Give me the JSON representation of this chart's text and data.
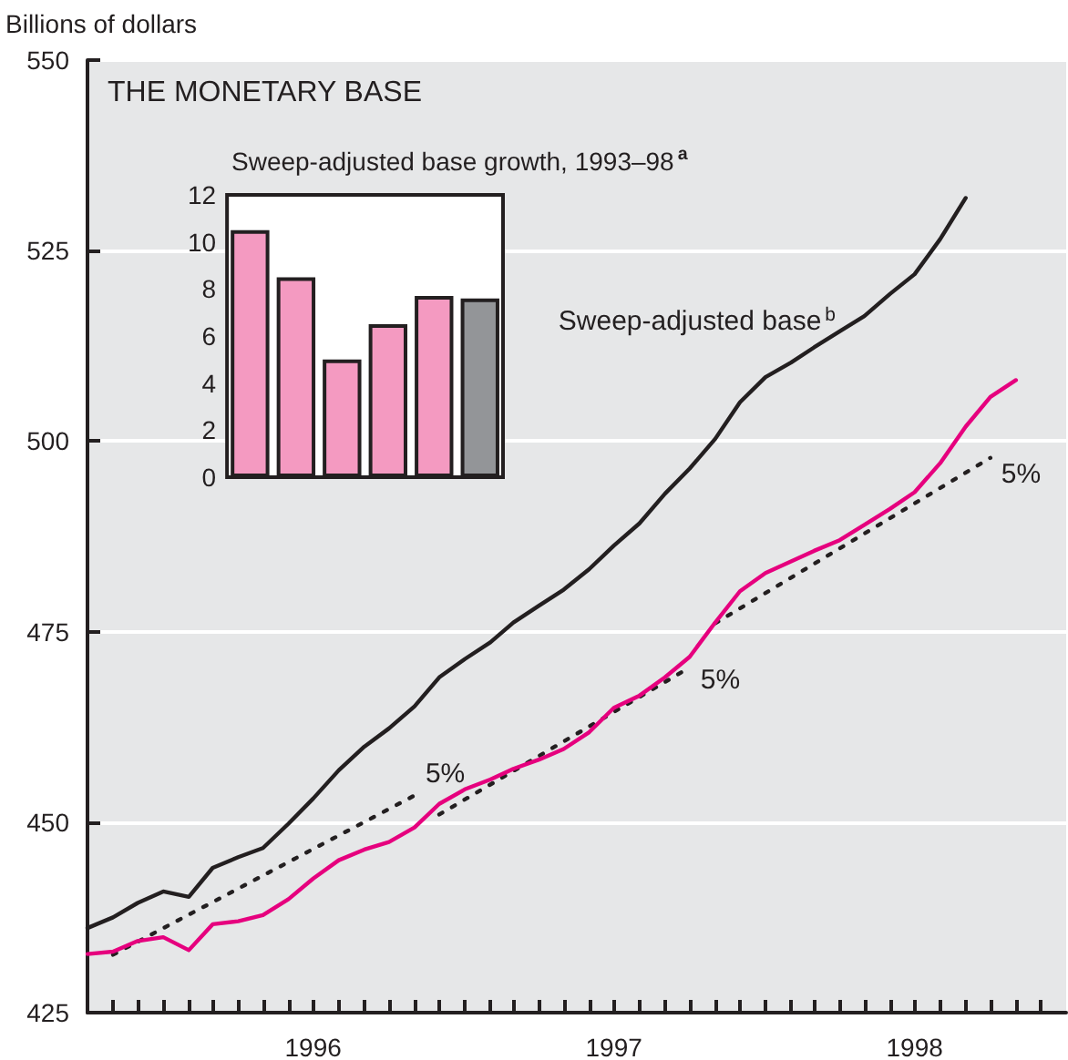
{
  "chart_data": [
    {
      "type": "line",
      "title": "THE MONETARY BASE",
      "ylabel": "Billions of dollars",
      "series": [
        {
          "color": "#e6007e",
          "x": [
            "1995-10",
            "1995-11",
            "1995-12",
            "1996-01",
            "1996-02",
            "1996-03",
            "1996-04",
            "1996-05",
            "1996-06",
            "1996-07",
            "1996-08",
            "1996-09",
            "1996-10",
            "1996-11",
            "1996-12",
            "1997-01",
            "1997-02",
            "1997-03",
            "1997-04",
            "1997-05",
            "1997-06",
            "1997-07",
            "1997-08",
            "1997-09",
            "1997-10",
            "1997-11",
            "1997-12",
            "1998-01",
            "1998-02",
            "1998-03",
            "1998-04",
            "1998-05",
            "1998-06",
            "1998-07",
            "1998-08",
            "1998-09",
            "1998-10",
            "1998-11"
          ],
          "values": [
            432.7,
            433.0,
            434.4,
            434.9,
            433.2,
            436.6,
            437.0,
            437.8,
            439.9,
            442.6,
            445.0,
            446.4,
            447.4,
            449.3,
            452.4,
            454.3,
            455.6,
            457.0,
            458.2,
            459.6,
            461.8,
            465.0,
            466.6,
            469.0,
            471.7,
            476.2,
            480.3,
            482.7,
            484.2,
            485.6,
            487.0,
            489.0,
            491.1,
            493.3,
            497.1,
            501.9,
            505.8,
            508.0
          ]
        },
        {
          "name": "Sweep-adjusted base$^{b}$",
          "color": "#231f20",
          "x": [
            "1995-10",
            "1995-11",
            "1995-12",
            "1996-01",
            "1996-02",
            "1996-03",
            "1996-04",
            "1996-05",
            "1996-06",
            "1996-07",
            "1996-08",
            "1996-09",
            "1996-10",
            "1996-11",
            "1996-12",
            "1997-01",
            "1997-02",
            "1997-03",
            "1997-04",
            "1997-05",
            "1997-06",
            "1997-07",
            "1997-08",
            "1997-09",
            "1997-10",
            "1997-11",
            "1997-12",
            "1998-01",
            "1998-02",
            "1998-03",
            "1998-04",
            "1998-05",
            "1998-06",
            "1998-07",
            "1998-08",
            "1998-09"
          ],
          "values": [
            436.1,
            437.5,
            439.4,
            440.9,
            440.2,
            444.0,
            445.4,
            446.6,
            449.8,
            453.1,
            456.8,
            459.9,
            462.3,
            465.2,
            469.0,
            471.4,
            473.6,
            476.2,
            478.4,
            480.5,
            483.2,
            486.3,
            489.2,
            493.1,
            496.4,
            500.3,
            505.1,
            508.4,
            510.3,
            512.3,
            514.4,
            516.4,
            519.3,
            521.9,
            526.5,
            531.9
          ]
        },
        {
          "color": "#231f20",
          "line_style": "dotted",
          "x": [
            "1995-11",
            "1996-11"
          ],
          "values": [
            432.6,
            453.5
          ]
        },
        {
          "color": "#231f20",
          "line_style": "dotted",
          "x": [
            "1996-12",
            "1997-10"
          ],
          "values": [
            451.0,
            470.3
          ]
        },
        {
          "color": "#231f20",
          "line_style": "dotted",
          "x": [
            "1997-11",
            "1998-10"
          ],
          "values": [
            476.1,
            497.8
          ]
        }
      ],
      "annotations": [
        {
          "text": "5%",
          "x": "1996-11",
          "y": 453.5
        },
        {
          "text": "5%",
          "x": "1997-10",
          "y": 470.3
        },
        {
          "text": "5%",
          "x": "1998-10",
          "y": 497.8
        }
      ],
      "xlim": [
        "1995-10",
        "1999-01"
      ],
      "xticks": [
        {
          "value": "1995-11",
          "label": null
        },
        {
          "value": "1995-12",
          "label": null
        },
        {
          "value": "1996-01",
          "label": null
        },
        {
          "value": "1996-02",
          "label": null
        },
        {
          "value": "1996-03",
          "label": null
        },
        {
          "value": "1996-04",
          "label": null
        },
        {
          "value": "1996-05",
          "label": null
        },
        {
          "value": "1996-06",
          "label": null
        },
        {
          "value": "1996-07",
          "label": "1996"
        },
        {
          "value": "1996-08",
          "label": null
        },
        {
          "value": "1996-09",
          "label": null
        },
        {
          "value": "1996-10",
          "label": null
        },
        {
          "value": "1996-11",
          "label": null
        },
        {
          "value": "1996-12",
          "label": null
        },
        {
          "value": "1997-01",
          "label": null
        },
        {
          "value": "1997-02",
          "label": null
        },
        {
          "value": "1997-03",
          "label": null
        },
        {
          "value": "1997-04",
          "label": null
        },
        {
          "value": "1997-05",
          "label": null
        },
        {
          "value": "1997-06",
          "label": null
        },
        {
          "value": "1997-07",
          "label": "1997"
        },
        {
          "value": "1997-08",
          "label": null
        },
        {
          "value": "1997-09",
          "label": null
        },
        {
          "value": "1997-10",
          "label": null
        },
        {
          "value": "1997-11",
          "label": null
        },
        {
          "value": "1997-12",
          "label": null
        },
        {
          "value": "1998-01",
          "label": null
        },
        {
          "value": "1998-02",
          "label": null
        },
        {
          "value": "1998-03",
          "label": null
        },
        {
          "value": "1998-04",
          "label": null
        },
        {
          "value": "1998-05",
          "label": null
        },
        {
          "value": "1998-06",
          "label": null
        },
        {
          "value": "1998-07",
          "label": "1998"
        },
        {
          "value": "1998-08",
          "label": null
        },
        {
          "value": "1998-09",
          "label": null
        },
        {
          "value": "1998-10",
          "label": null
        },
        {
          "value": "1998-11",
          "label": null
        },
        {
          "value": "1998-12",
          "label": null
        }
      ],
      "ylim": [
        425,
        550
      ],
      "yticks": [
        425,
        450,
        475,
        500,
        525,
        550
      ],
      "grid": "y",
      "marker": "none"
    },
    {
      "type": "bar",
      "title": "Sweep-adjusted base growth, 1993–98$^{a}$",
      "categories": [
        null,
        null,
        null,
        null,
        null,
        null
      ],
      "values": [
        10.5,
        8.5,
        5.0,
        6.5,
        7.7,
        7.6
      ],
      "colors": [
        "#f49ac1",
        "#f49ac1",
        "#f49ac1",
        "#f49ac1",
        "#f49ac1",
        "#939598"
      ],
      "ylim": [
        0,
        12
      ],
      "yticks": [
        0,
        2,
        4,
        6,
        8,
        10,
        12
      ],
      "grid": false
    }
  ]
}
